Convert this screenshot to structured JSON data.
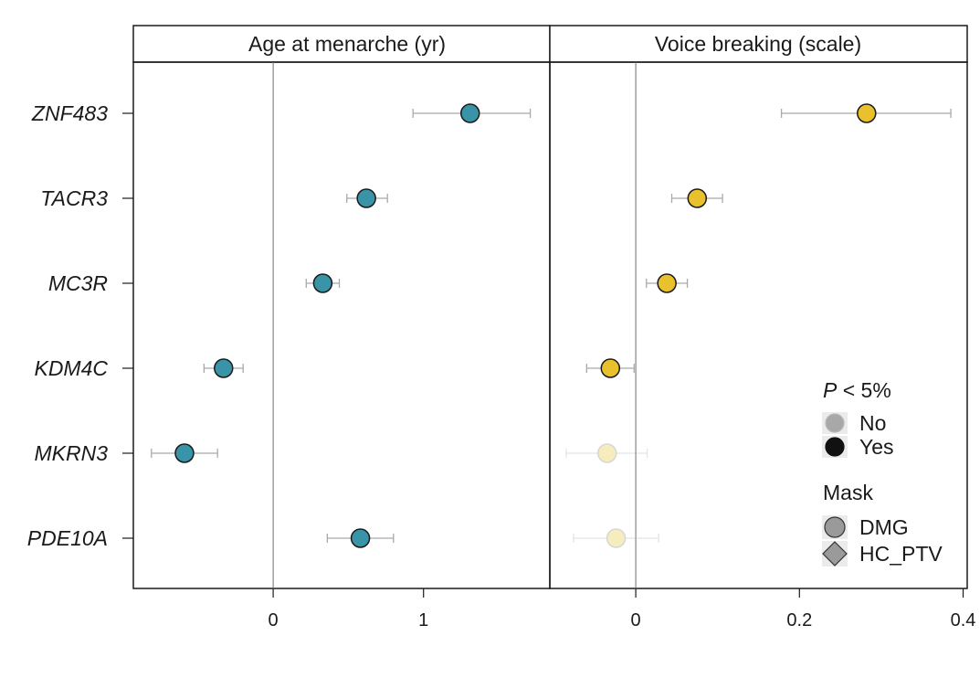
{
  "chart_data": {
    "type": "scatter",
    "genes": [
      "ZNF483",
      "TACR3",
      "MC3R",
      "KDM4C",
      "MKRN3",
      "PDE10A"
    ],
    "panels": [
      {
        "title": "Age at menarche (yr)",
        "color": "#3a94a8",
        "xlim": [
          -0.93,
          1.84
        ],
        "ticks": [
          0,
          1
        ],
        "points": [
          {
            "gene": "ZNF483",
            "value": 1.31,
            "lower": 0.93,
            "upper": 1.71,
            "significant": true,
            "mask": "DMG"
          },
          {
            "gene": "TACR3",
            "value": 0.62,
            "lower": 0.49,
            "upper": 0.76,
            "significant": true,
            "mask": "DMG"
          },
          {
            "gene": "MC3R",
            "value": 0.33,
            "lower": 0.22,
            "upper": 0.44,
            "significant": true,
            "mask": "DMG"
          },
          {
            "gene": "KDM4C",
            "value": -0.33,
            "lower": -0.46,
            "upper": -0.2,
            "significant": true,
            "mask": "DMG"
          },
          {
            "gene": "MKRN3",
            "value": -0.59,
            "lower": -0.81,
            "upper": -0.37,
            "significant": true,
            "mask": "DMG"
          },
          {
            "gene": "PDE10A",
            "value": 0.58,
            "lower": 0.36,
            "upper": 0.8,
            "significant": true,
            "mask": "DMG"
          }
        ]
      },
      {
        "title": "Voice breaking (scale)",
        "color": "#e8c12c",
        "xlim": [
          -0.105,
          0.405
        ],
        "ticks": [
          0,
          0.2,
          0.4
        ],
        "tick_labels": [
          "0",
          "0.2",
          "0.4"
        ],
        "points": [
          {
            "gene": "ZNF483",
            "value": 0.282,
            "lower": 0.178,
            "upper": 0.385,
            "significant": true,
            "mask": "DMG"
          },
          {
            "gene": "TACR3",
            "value": 0.075,
            "lower": 0.044,
            "upper": 0.106,
            "significant": true,
            "mask": "DMG"
          },
          {
            "gene": "MC3R",
            "value": 0.038,
            "lower": 0.013,
            "upper": 0.063,
            "significant": true,
            "mask": "DMG"
          },
          {
            "gene": "KDM4C",
            "value": -0.031,
            "lower": -0.06,
            "upper": -0.002,
            "significant": true,
            "mask": "DMG"
          },
          {
            "gene": "MKRN3",
            "value": -0.035,
            "lower": -0.085,
            "upper": 0.014,
            "significant": false,
            "mask": "DMG"
          },
          {
            "gene": "PDE10A",
            "value": -0.024,
            "lower": -0.076,
            "upper": 0.028,
            "significant": false,
            "mask": "DMG"
          }
        ]
      }
    ],
    "legend": {
      "placement": "bottom-right",
      "p_title_italic": "P",
      "p_title_rest": " < 5%",
      "p_items": [
        "No",
        "Yes"
      ],
      "mask_title": "Mask",
      "mask_items": [
        "DMG",
        "HC_PTV"
      ]
    }
  }
}
